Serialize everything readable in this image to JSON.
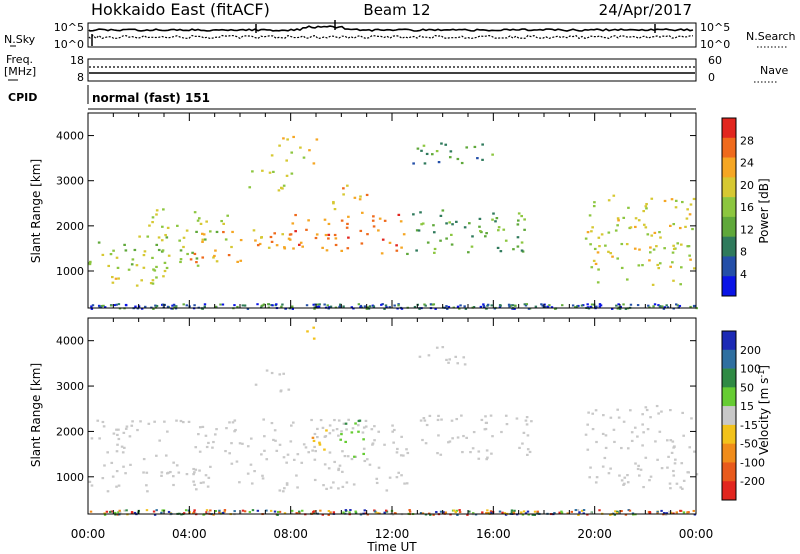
{
  "header": {
    "title": "Hokkaido East (fitACF)",
    "beam": "Beam 12",
    "date": "24/Apr/2017"
  },
  "noise_panel": {
    "left_label": "N.Sky",
    "left_ticks": [
      "10^5",
      "10^0"
    ],
    "right_ticks": [
      "10^5",
      "10^0"
    ],
    "right_label": "N.Search"
  },
  "freq_panel": {
    "left_label_line1": "Freq.",
    "left_label_line2": "[MHz]",
    "left_ticks": [
      "18",
      "8"
    ],
    "right_ticks": [
      "60",
      "0"
    ],
    "right_label": "Nave"
  },
  "cpid": {
    "label": "CPID",
    "value": "normal (fast) 151"
  },
  "chart_data": [
    {
      "type": "heatmap",
      "parameter": "Power",
      "ylabel": "Slant Range [km]",
      "xlabel": "",
      "x_ticks": [
        "00:00",
        "04:00",
        "08:00",
        "12:00",
        "16:00",
        "20:00",
        "00:00"
      ],
      "xlim_hours": [
        0,
        24
      ],
      "y_ticks": [
        1000,
        2000,
        3000,
        4000
      ],
      "ylim_km": [
        180,
        4500
      ],
      "colorbar": {
        "label": "Power [dB]",
        "ticks": [
          4,
          8,
          12,
          16,
          20,
          24,
          28
        ],
        "range": [
          0,
          32
        ],
        "colors": [
          "#0a14e6",
          "#244fa8",
          "#2f7a5c",
          "#5fa83a",
          "#8cc63f",
          "#d6c832",
          "#f5a623",
          "#ef6a1c",
          "#e2261f"
        ]
      },
      "echo_regions": [
        {
          "t0": 0.3,
          "t1": 3.0,
          "r0": 650,
          "r1": 1200,
          "power": 20
        },
        {
          "t0": 0.0,
          "t1": 4.5,
          "r0": 1000,
          "r1": 1700,
          "power": 17
        },
        {
          "t0": 1.5,
          "t1": 5.5,
          "r0": 1700,
          "r1": 2400,
          "power": 19
        },
        {
          "t0": 4.0,
          "t1": 8.0,
          "r0": 1200,
          "r1": 2000,
          "power": 26
        },
        {
          "t0": 8.0,
          "t1": 12.6,
          "r0": 1400,
          "r1": 2300,
          "power": 29
        },
        {
          "t0": 9.6,
          "t1": 11.0,
          "r0": 2300,
          "r1": 3000,
          "power": 25
        },
        {
          "t0": 6.0,
          "t1": 8.0,
          "r0": 2800,
          "r1": 3300,
          "power": 20
        },
        {
          "t0": 7.2,
          "t1": 9.0,
          "r0": 3400,
          "r1": 4000,
          "power": 22
        },
        {
          "t0": 12.5,
          "t1": 17.5,
          "r0": 1400,
          "r1": 2400,
          "power": 14
        },
        {
          "t0": 12.8,
          "t1": 16.5,
          "r0": 3400,
          "r1": 3900,
          "power": 12
        },
        {
          "t0": 19.6,
          "t1": 24.0,
          "r0": 700,
          "r1": 2700,
          "power": 21
        }
      ]
    },
    {
      "type": "heatmap",
      "parameter": "Velocity",
      "ylabel": "Slant Range [km]",
      "xlabel": "Time UT",
      "x_ticks": [
        "00:00",
        "04:00",
        "08:00",
        "12:00",
        "16:00",
        "20:00",
        "00:00"
      ],
      "xlim_hours": [
        0,
        24
      ],
      "y_ticks": [
        1000,
        2000,
        3000,
        4000
      ],
      "ylim_km": [
        180,
        4500
      ],
      "colorbar": {
        "label_main": "Velocity [m s",
        "label_sup": "-1",
        "label_end": "]",
        "ticks": [
          200,
          100,
          50,
          15,
          -15,
          -50,
          -100,
          -200
        ],
        "colors": [
          "#1c2ab5",
          "#2f6fa0",
          "#2f8a44",
          "#66cc33",
          "#c8c8c8",
          "#f2c21b",
          "#f08c1a",
          "#e85a1c",
          "#e2261f"
        ]
      },
      "echo_regions": [
        {
          "t0": 0.0,
          "t1": 12.6,
          "r0": 700,
          "r1": 2300,
          "velocity": 0
        },
        {
          "t0": 9.8,
          "t1": 11.0,
          "r0": 1400,
          "r1": 2300,
          "velocity": 40
        },
        {
          "t0": 8.5,
          "t1": 9.4,
          "r0": 1500,
          "r1": 2100,
          "velocity": -40
        },
        {
          "t0": 8.6,
          "t1": 9.0,
          "r0": 3800,
          "r1": 4400,
          "velocity": -45
        },
        {
          "t0": 6.5,
          "t1": 8.0,
          "r0": 2900,
          "r1": 3400,
          "velocity": 0
        },
        {
          "t0": 12.5,
          "t1": 17.5,
          "r0": 1400,
          "r1": 2400,
          "velocity": 0
        },
        {
          "t0": 13.0,
          "t1": 15.5,
          "r0": 3500,
          "r1": 3900,
          "velocity": 0
        },
        {
          "t0": 19.6,
          "t1": 24.0,
          "r0": 700,
          "r1": 2600,
          "velocity": 0
        }
      ]
    }
  ]
}
